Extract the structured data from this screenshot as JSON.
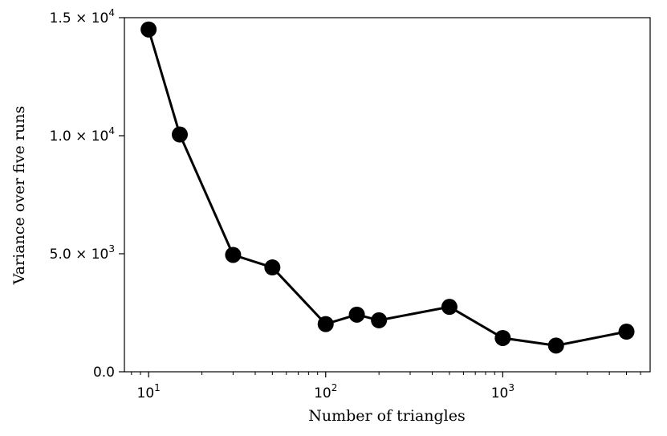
{
  "chart_data": {
    "type": "line",
    "title": "",
    "xlabel": "Number of triangles",
    "ylabel": "Variance over five runs",
    "xscale": "log",
    "xlim": [
      7.3,
      6800
    ],
    "ylim": [
      0,
      15000
    ],
    "grid": false,
    "legend": "none",
    "line_color": "#000000",
    "marker": "circle",
    "x_ticks": [
      {
        "value": 10,
        "base": "10",
        "exp": "1"
      },
      {
        "value": 100,
        "base": "10",
        "exp": "2"
      },
      {
        "value": 1000,
        "base": "10",
        "exp": "3"
      }
    ],
    "y_ticks": [
      {
        "value": 0,
        "mantissa": "0.0",
        "exp": ""
      },
      {
        "value": 5000,
        "mantissa": "5.0",
        "exp": "3"
      },
      {
        "value": 10000,
        "mantissa": "1.0",
        "exp": "4"
      },
      {
        "value": 15000,
        "mantissa": "1.5",
        "exp": "4"
      }
    ],
    "series": [
      {
        "x": [
          10,
          15,
          30,
          50,
          100,
          150,
          200,
          500,
          1000,
          2000,
          5000
        ],
        "y": [
          14500,
          10050,
          4950,
          4420,
          2020,
          2420,
          2180,
          2750,
          1430,
          1110,
          1700
        ]
      }
    ]
  }
}
